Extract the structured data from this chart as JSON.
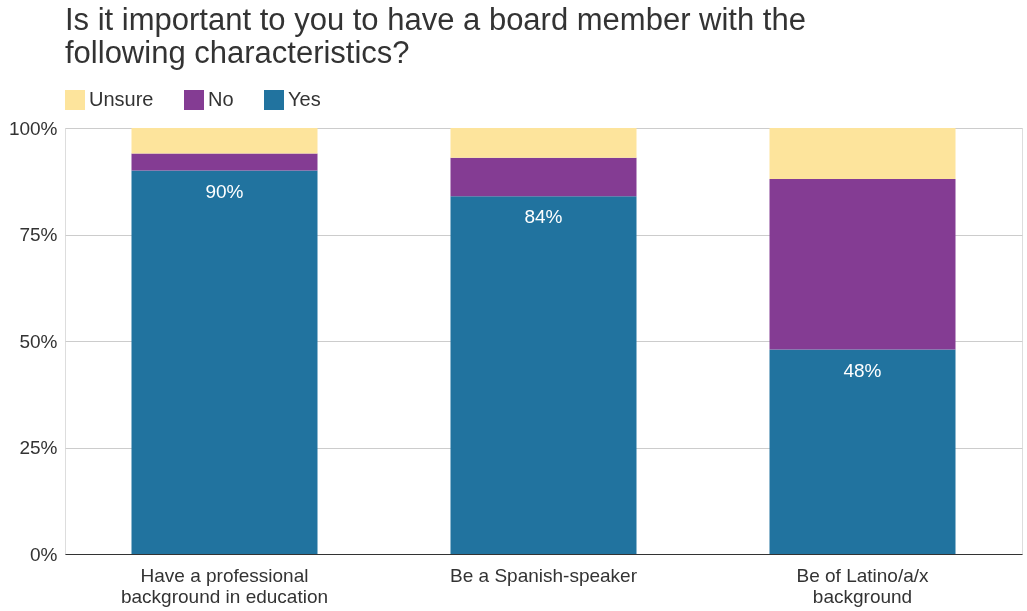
{
  "chart_data": {
    "type": "bar",
    "stacked": true,
    "title": "Is it important to you to have a board member with the following characteristics?",
    "categories": [
      "Have a professional background in education",
      "Be a Spanish-speaker",
      "Be of Latino/a/x background"
    ],
    "series": [
      {
        "name": "Yes",
        "color": "#21739f",
        "values": [
          90,
          84,
          48
        ],
        "value_labels": [
          "90%",
          "84%",
          "48%"
        ]
      },
      {
        "name": "No",
        "color": "#843c93",
        "values": [
          4,
          9,
          40
        ]
      },
      {
        "name": "Unsure",
        "color": "#fde49c",
        "values": [
          6,
          7,
          12
        ]
      }
    ],
    "ylim": [
      0,
      100
    ],
    "yticks": [
      {
        "value": 0,
        "label": "0%"
      },
      {
        "value": 25,
        "label": "25%"
      },
      {
        "value": 50,
        "label": "50%"
      },
      {
        "value": 75,
        "label": "75%"
      },
      {
        "value": 100,
        "label": "100%"
      }
    ],
    "grid": "y",
    "legend": "top"
  }
}
